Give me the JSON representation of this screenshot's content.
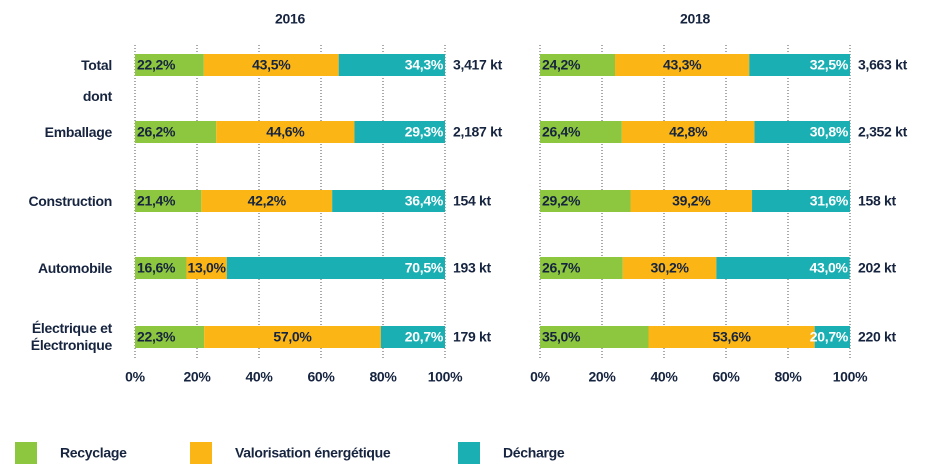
{
  "chart_data": [
    {
      "type": "bar",
      "orientation": "horizontal",
      "stacked": true,
      "title": "2016",
      "categories": [
        "Total",
        "Emballage",
        "Construction",
        "Automobile",
        "Électrique et Électronique"
      ],
      "annotations": [
        "dont"
      ],
      "series": [
        {
          "name": "Recyclage",
          "color": "#8dc63f",
          "values": [
            22.2,
            26.2,
            21.4,
            16.6,
            22.3
          ],
          "value_labels": [
            "22,2%",
            "26,2%",
            "21,4%",
            "16,6%",
            "22,3%"
          ]
        },
        {
          "name": "Valorisation énergétique",
          "color": "#fbb616",
          "values": [
            43.5,
            44.6,
            42.2,
            13.0,
            57.0
          ],
          "value_labels": [
            "43,5%",
            "44,6%",
            "42,2%",
            "13,0%",
            "57,0%"
          ]
        },
        {
          "name": "Décharge",
          "color": "#1aafb3",
          "values": [
            34.3,
            29.3,
            36.4,
            70.5,
            20.7
          ],
          "value_labels": [
            "34,3%",
            "29,3%",
            "36,4%",
            "70,5%",
            "20,7%"
          ]
        }
      ],
      "total_labels": [
        "3,417 kt",
        "2,187 kt",
        "154 kt",
        "193 kt",
        "179 kt"
      ],
      "xlim": [
        0,
        100
      ],
      "xticks": [
        {
          "value": 0,
          "label": "0%"
        },
        {
          "value": 20,
          "label": "20%"
        },
        {
          "value": 40,
          "label": "40%"
        },
        {
          "value": 60,
          "label": "60%"
        },
        {
          "value": 80,
          "label": "80%"
        },
        {
          "value": 100,
          "label": "100%"
        }
      ],
      "grid": true,
      "legend": "bottom"
    },
    {
      "type": "bar",
      "orientation": "horizontal",
      "stacked": true,
      "title": "2018",
      "series": [
        {
          "name": "Recyclage",
          "color": "#8dc63f",
          "values": [
            24.2,
            26.4,
            29.2,
            26.7,
            35.0
          ],
          "value_labels": [
            "24,2%",
            "26,4%",
            "29,2%",
            "26,7%",
            "35,0%"
          ]
        },
        {
          "name": "Valorisation énergétique",
          "color": "#fbb616",
          "values": [
            43.3,
            42.8,
            39.2,
            30.2,
            53.6
          ],
          "value_labels": [
            "43,3%",
            "42,8%",
            "39,2%",
            "30,2%",
            "53,6%"
          ]
        },
        {
          "name": "Décharge",
          "color": "#1aafb3",
          "values": [
            32.5,
            30.8,
            31.6,
            43.0,
            20.7
          ],
          "value_labels": [
            "32,5%",
            "30,8%",
            "31,6%",
            "43,0%",
            "20,7%"
          ]
        }
      ],
      "total_labels": [
        "3,663 kt",
        "2,352 kt",
        "158 kt",
        "202 kt",
        "220 kt"
      ],
      "xlim": [
        0,
        100
      ],
      "xticks": [
        {
          "value": 0,
          "label": "0%"
        },
        {
          "value": 20,
          "label": "20%"
        },
        {
          "value": 40,
          "label": "40%"
        },
        {
          "value": 60,
          "label": "60%"
        },
        {
          "value": 80,
          "label": "80%"
        },
        {
          "value": 100,
          "label": "100%"
        }
      ],
      "grid": true
    }
  ]
}
